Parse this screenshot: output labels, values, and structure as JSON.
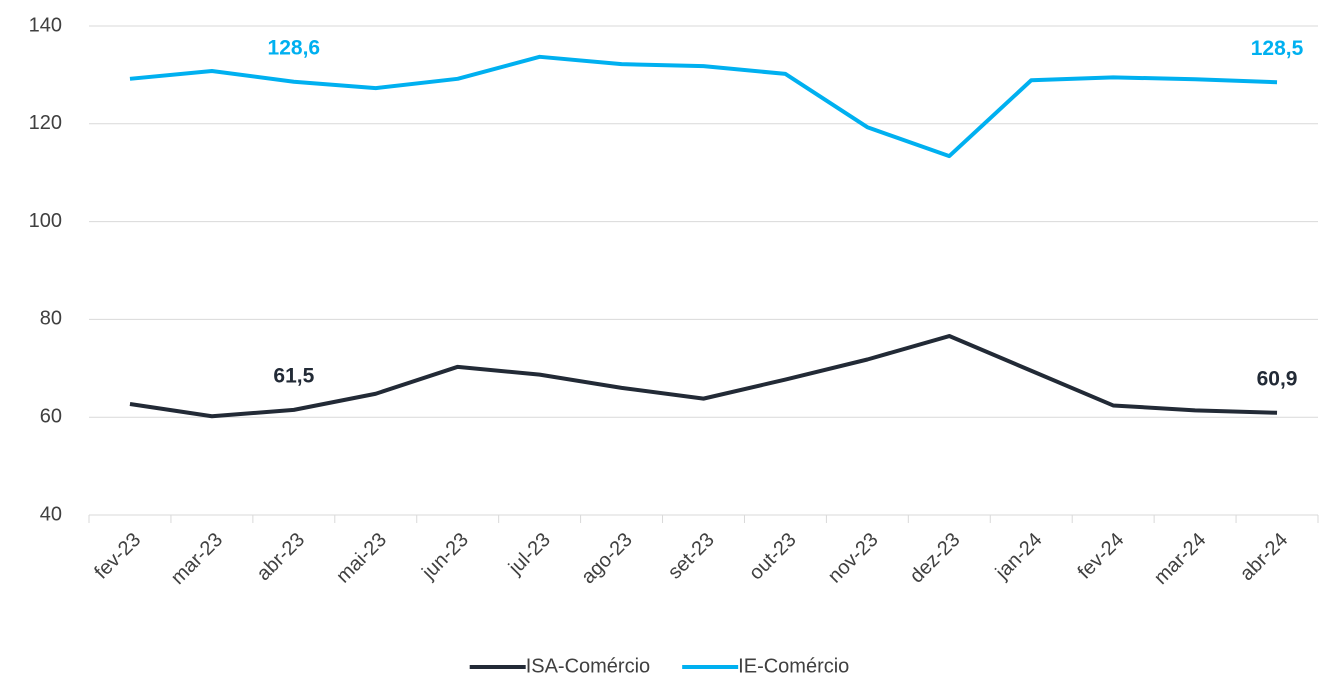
{
  "chart_data": {
    "type": "line",
    "categories": [
      "fev-23",
      "mar-23",
      "abr-23",
      "mai-23",
      "jun-23",
      "jul-23",
      "ago-23",
      "set-23",
      "out-23",
      "nov-23",
      "dez-23",
      "jan-24",
      "fev-24",
      "mar-24",
      "abr-24"
    ],
    "series": [
      {
        "name": "ISA-Comércio",
        "color": "#222a36",
        "values": [
          62.7,
          60.2,
          61.5,
          64.8,
          70.3,
          68.7,
          66.0,
          63.8,
          67.7,
          71.8,
          76.6,
          69.5,
          62.4,
          61.4,
          60.9
        ],
        "value_labels": [
          null,
          null,
          "61,5",
          null,
          null,
          null,
          null,
          null,
          null,
          null,
          null,
          null,
          null,
          null,
          "60,9"
        ]
      },
      {
        "name": "IE-Comércio",
        "color": "#00b0f0",
        "values": [
          129.2,
          130.8,
          128.6,
          127.3,
          129.2,
          133.7,
          132.2,
          131.8,
          130.2,
          119.3,
          113.4,
          128.9,
          129.5,
          129.1,
          128.5
        ],
        "value_labels": [
          null,
          null,
          "128,6",
          null,
          null,
          null,
          null,
          null,
          null,
          null,
          null,
          null,
          null,
          null,
          "128,5"
        ]
      }
    ],
    "ylim": [
      40,
      140
    ],
    "yticks": [
      40,
      60,
      80,
      100,
      120,
      140
    ],
    "grid": true,
    "legend": "bottom"
  }
}
